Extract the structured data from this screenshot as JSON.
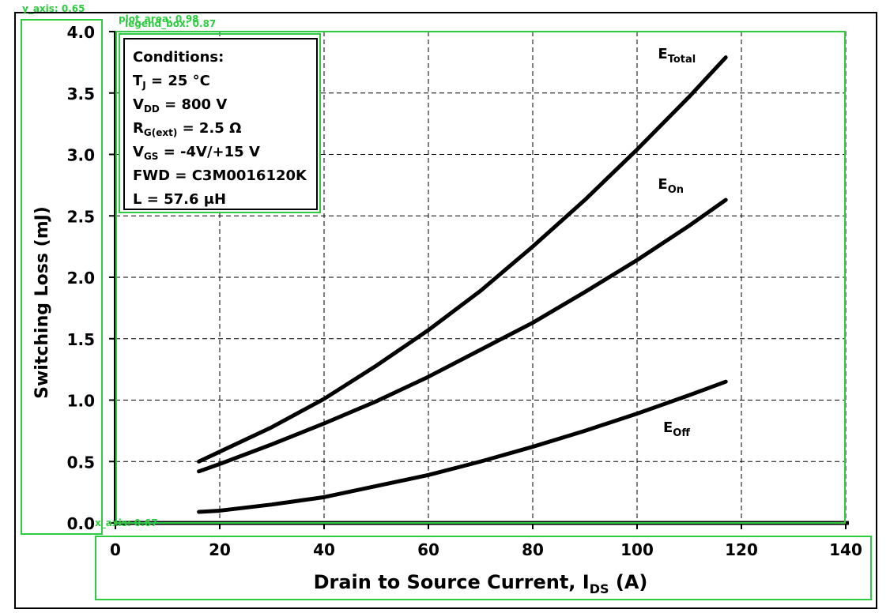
{
  "overlays": {
    "y_axis_label": "y_axis: 0.65",
    "plot_area_label": "plot_area: 0.98",
    "legend_box_label": "legend_box: 0.87",
    "x_axis_label": "x_axis: 0.67",
    "color": "#2ecc40"
  },
  "conditions": {
    "title": "Conditions:",
    "lines": [
      {
        "main": "T",
        "sub": "J",
        "rest": " = 25 °C"
      },
      {
        "main": "V",
        "sub": "DD",
        "rest": " = 800 V"
      },
      {
        "main": "R",
        "sub": "G(ext)",
        "rest": " = 2.5 Ω"
      },
      {
        "main": "V",
        "sub": "GS",
        "rest": " = -4V/+15 V"
      },
      {
        "main": "FWD = C3M0016120K",
        "sub": "",
        "rest": ""
      },
      {
        "main": "L = 57.6 μH",
        "sub": "",
        "rest": ""
      }
    ]
  },
  "chart_data": {
    "type": "line",
    "xlabel": {
      "main": "Drain to Source Current, I",
      "sub": "DS",
      "rest": " (A)"
    },
    "ylabel": "Switching Loss (mJ)",
    "xlim": [
      0,
      140
    ],
    "ylim": [
      0.0,
      4.0
    ],
    "x_ticks": [
      0,
      20,
      40,
      60,
      80,
      100,
      120,
      140
    ],
    "x_tick_labels": [
      "0",
      "20",
      "40",
      "60",
      "80",
      "100",
      "120",
      "140"
    ],
    "y_ticks": [
      0.0,
      0.5,
      1.0,
      1.5,
      2.0,
      2.5,
      3.0,
      3.5,
      4.0
    ],
    "y_tick_labels": [
      "0.0",
      "0.5",
      "1.0",
      "1.5",
      "2.0",
      "2.5",
      "3.0",
      "3.5",
      "4.0"
    ],
    "grid": true,
    "series": [
      {
        "name": "E_Total",
        "label_main": "E",
        "label_sub": "Total",
        "x": [
          16,
          20,
          30,
          40,
          50,
          60,
          70,
          80,
          90,
          100,
          110,
          117
        ],
        "y": [
          0.5,
          0.58,
          0.78,
          1.01,
          1.28,
          1.57,
          1.89,
          2.25,
          2.63,
          3.04,
          3.47,
          3.79
        ]
      },
      {
        "name": "E_On",
        "label_main": "E",
        "label_sub": "On",
        "x": [
          16,
          20,
          30,
          40,
          50,
          60,
          70,
          80,
          90,
          100,
          110,
          117
        ],
        "y": [
          0.42,
          0.48,
          0.64,
          0.81,
          0.99,
          1.19,
          1.41,
          1.63,
          1.88,
          2.14,
          2.42,
          2.63
        ]
      },
      {
        "name": "E_Off",
        "label_main": "E",
        "label_sub": "Off",
        "x": [
          16,
          20,
          30,
          40,
          50,
          60,
          70,
          80,
          90,
          100,
          110,
          117
        ],
        "y": [
          0.09,
          0.1,
          0.15,
          0.21,
          0.3,
          0.39,
          0.5,
          0.62,
          0.75,
          0.89,
          1.04,
          1.15
        ]
      }
    ]
  }
}
